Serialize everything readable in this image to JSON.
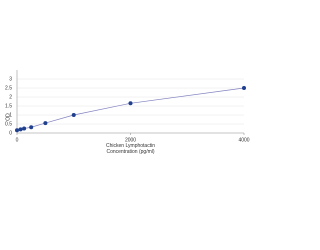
{
  "chart_data": {
    "type": "scatter",
    "x_label": "Chicken Lymphotactin\nConcentration (pg/ml)",
    "y_label": "OD",
    "series": [
      {
        "color": "#1f3f8f",
        "line_color": "#8080c0",
        "x": [
          0,
          62.5,
          125,
          250,
          500,
          1000,
          2000,
          4000
        ],
        "values": [
          0.15,
          0.2,
          0.25,
          0.32,
          0.55,
          1.0,
          1.65,
          2.5
        ]
      }
    ],
    "xlim": [
      0,
      4000
    ],
    "xticks": [
      0,
      2000,
      4000
    ],
    "ylim": [
      0,
      3.5
    ],
    "yticks": [
      0,
      0.5,
      1,
      1.5,
      2,
      2.5,
      3
    ],
    "grid": true
  }
}
